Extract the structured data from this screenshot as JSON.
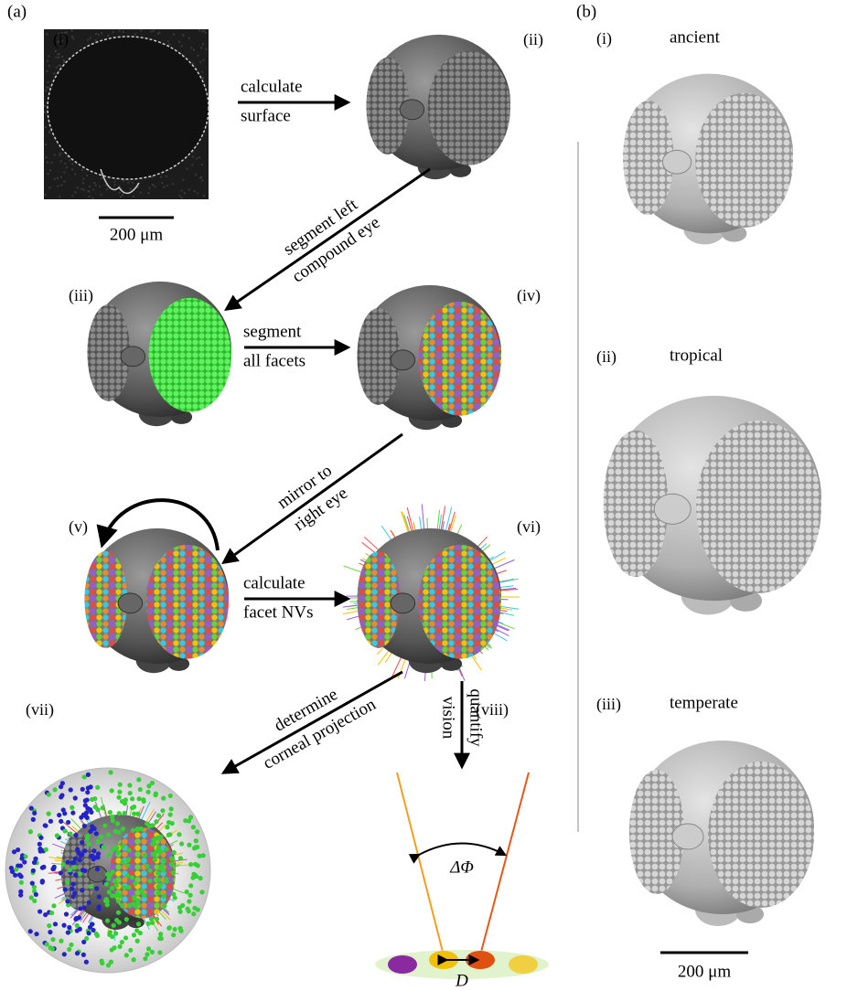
{
  "panel_a": {
    "label": "(a)",
    "steps": [
      "(i)",
      "(ii)",
      "(iii)",
      "(iv)",
      "(v)",
      "(vi)",
      "(vii)",
      "(viii)"
    ],
    "scale_bar": "200 μm",
    "arrows": [
      [
        "calculate",
        "surface"
      ],
      [
        "segment left",
        "compound eye"
      ],
      [
        "segment",
        "all facets"
      ],
      [
        "mirror to",
        "right eye"
      ],
      [
        "calculate",
        "facet NVs"
      ],
      [
        "determine",
        "corneal projection"
      ],
      [
        "quantify",
        "vision"
      ]
    ],
    "angle_label": "ΔΦ",
    "distance_label": "D"
  },
  "panel_b": {
    "label": "(b)",
    "specimens": [
      {
        "label": "(i)",
        "name": "ancient",
        "color": "#e8281e"
      },
      {
        "label": "(ii)",
        "name": "tropical",
        "color": "#3ddc48"
      },
      {
        "label": "(iii)",
        "name": "temperate",
        "color": "#2323e0"
      }
    ],
    "scale_bar": "200 μm"
  }
}
